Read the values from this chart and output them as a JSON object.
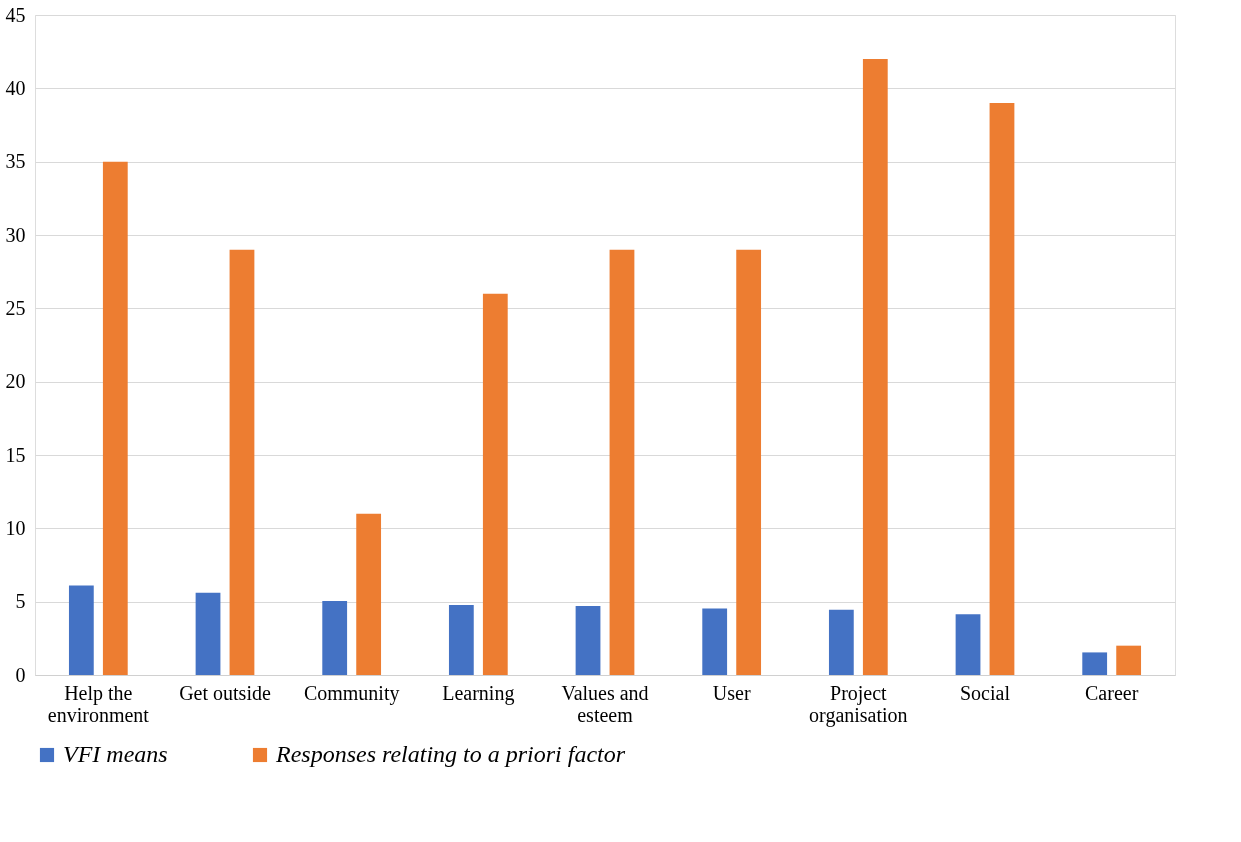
{
  "chart_data": {
    "type": "bar",
    "categories": [
      "Help the environment",
      "Get outside",
      "Community",
      "Learning",
      "Values and esteem",
      "User",
      "Project organisation",
      "Social",
      "Career"
    ],
    "series": [
      {
        "name": "VFI means",
        "color": "#4472c4",
        "values": [
          6.1,
          5.6,
          5.05,
          4.77,
          4.71,
          4.53,
          4.45,
          4.14,
          1.54
        ]
      },
      {
        "name": "Responses relating to a priori factor",
        "color": "#ed7d31",
        "values": [
          35,
          29,
          11,
          26,
          29,
          29,
          42,
          39,
          2
        ]
      }
    ],
    "ylim": [
      0,
      45
    ],
    "yticks": [
      0,
      5,
      10,
      15,
      20,
      25,
      30,
      35,
      40,
      45
    ],
    "grid": "y",
    "legend": "bottom"
  }
}
